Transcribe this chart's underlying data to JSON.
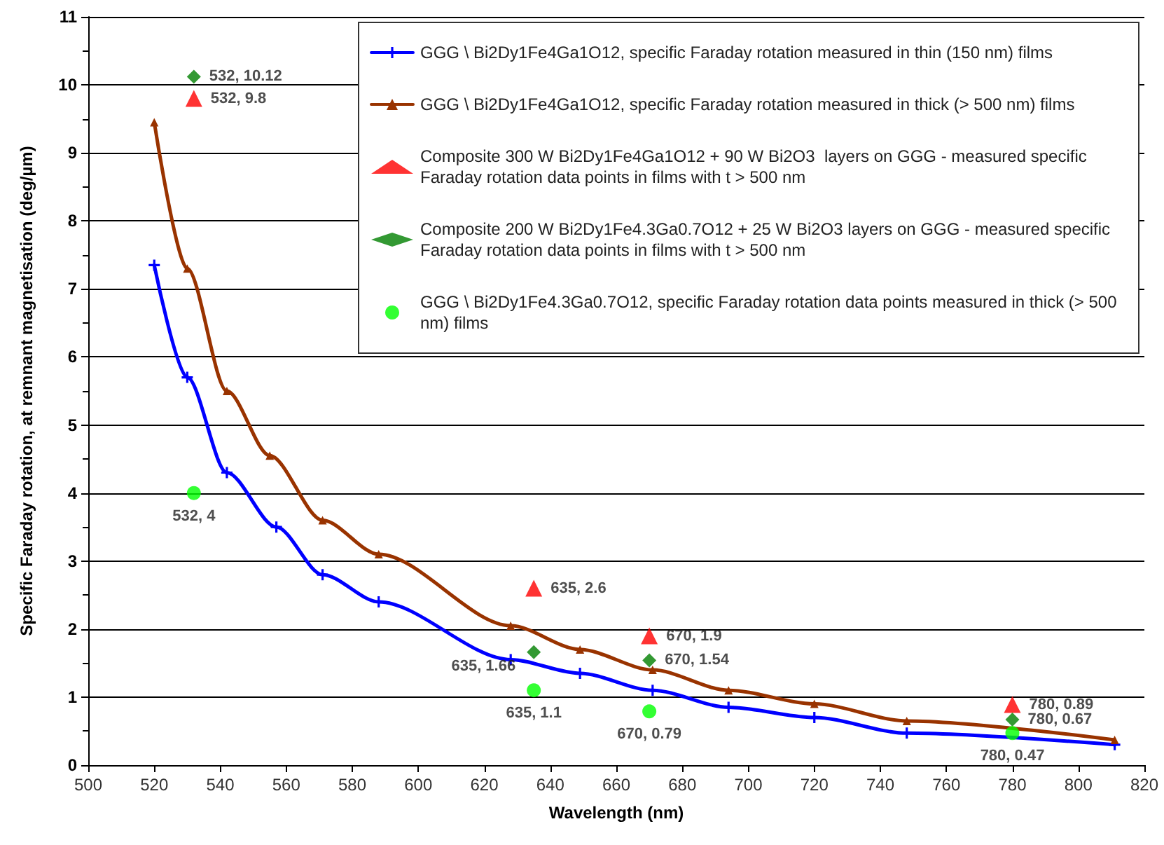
{
  "chart_data": {
    "type": "line",
    "xlabel": "Wavelength (nm)",
    "ylabel": "Specific Faraday rotation, at remnant magnetisation (deg/µm)",
    "xlim": [
      500,
      820
    ],
    "xticks": [
      500,
      520,
      540,
      560,
      580,
      600,
      620,
      640,
      660,
      680,
      700,
      720,
      740,
      760,
      780,
      800,
      820
    ],
    "ylim": [
      0,
      11
    ],
    "yticks": [
      0,
      1,
      2,
      3,
      4,
      5,
      6,
      7,
      8,
      9,
      10,
      11
    ],
    "grid": "y",
    "legend": "top right",
    "series": [
      {
        "name": "GGG \\ Bi2Dy1Fe4Ga1O12, specific Faraday rotation measured in thin (150 nm) films",
        "color": "#0000ff",
        "marker": "cross",
        "x": [
          520,
          530,
          542,
          557,
          571,
          588,
          628,
          649,
          671,
          694,
          720,
          748,
          811
        ],
        "values": [
          7.35,
          5.7,
          4.3,
          3.5,
          2.8,
          2.4,
          1.55,
          1.35,
          1.1,
          0.85,
          0.7,
          0.47,
          0.3
        ]
      },
      {
        "name": "GGG \\ Bi2Dy1Fe4Ga1O12, specific Faraday rotation measured in thick (> 500 nm) films",
        "color": "#993300",
        "marker": "triangle",
        "x": [
          520,
          530,
          542,
          555,
          571,
          588,
          628,
          649,
          671,
          694,
          720,
          748,
          811
        ],
        "values": [
          9.45,
          7.3,
          5.5,
          4.55,
          3.6,
          3.1,
          2.05,
          1.7,
          1.4,
          1.1,
          0.9,
          0.65,
          0.37
        ]
      },
      {
        "name": "Composite 300 W Bi2Dy1Fe4Ga1O12 + 90 W Bi2O3  layers on GGG - measured specific Faraday rotation data points in films with t > 500 nm",
        "type": "scatter",
        "color": "#ff0000",
        "marker": "triangle",
        "x": [
          532,
          635,
          670,
          780
        ],
        "values": [
          9.8,
          2.6,
          1.9,
          0.89
        ],
        "value_labels": [
          "532, 9.8",
          "635, 2.6",
          "670, 1.9",
          "780, 0.89"
        ]
      },
      {
        "name": "Composite 200 W Bi2Dy1Fe4.3Ga0.7O12 + 25 W Bi2O3 layers on GGG - measured specific Faraday rotation data points in films with t > 500 nm",
        "type": "scatter",
        "color": "#008000",
        "marker": "diamond",
        "x": [
          532,
          635,
          670,
          780
        ],
        "values": [
          10.12,
          1.66,
          1.54,
          0.67
        ],
        "value_labels": [
          "532, 10.12",
          "635, 1.66",
          "670, 1.54",
          "780, 0.67"
        ]
      },
      {
        "name": "GGG \\ Bi2Dy1Fe4.3Ga0.7O12, specific Faraday rotation data points measured in thick (> 500 nm) films",
        "type": "scatter",
        "color": "#00ff00",
        "marker": "circle",
        "x": [
          532,
          635,
          670,
          780
        ],
        "values": [
          4,
          1.1,
          0.79,
          0.47
        ],
        "value_labels": [
          "532, 4",
          "635, 1.1",
          "670, 0.79",
          "780, 0.47"
        ]
      }
    ]
  }
}
